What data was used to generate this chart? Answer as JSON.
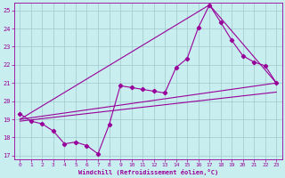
{
  "xlabel": "Windchill (Refroidissement éolien,°C)",
  "background_color": "#c8eef0",
  "grid_color": "#b0d8dc",
  "line_color": "#990099",
  "xlim": [
    -0.5,
    23.5
  ],
  "ylim": [
    16.8,
    25.4
  ],
  "yticks": [
    17,
    18,
    19,
    20,
    21,
    22,
    23,
    24,
    25
  ],
  "xticks": [
    0,
    1,
    2,
    3,
    4,
    5,
    6,
    7,
    8,
    9,
    10,
    11,
    12,
    13,
    14,
    15,
    16,
    17,
    18,
    19,
    20,
    21,
    22,
    23
  ],
  "data_x": [
    0,
    1,
    2,
    3,
    4,
    5,
    6,
    7,
    8,
    9,
    10,
    11,
    12,
    13,
    14,
    15,
    16,
    17,
    18,
    19,
    20,
    21,
    22,
    23
  ],
  "data_y": [
    19.3,
    18.9,
    18.75,
    18.35,
    17.65,
    17.75,
    17.55,
    17.1,
    18.7,
    20.85,
    20.75,
    20.65,
    20.55,
    20.45,
    21.85,
    22.35,
    24.05,
    25.3,
    24.35,
    23.35,
    22.5,
    22.15,
    21.95,
    21.0
  ],
  "line1_x": [
    0,
    23
  ],
  "line1_y": [
    19.0,
    21.0
  ],
  "line2_x": [
    0,
    17
  ],
  "line2_y": [
    19.0,
    25.3
  ],
  "line3_x": [
    17,
    23
  ],
  "line3_y": [
    25.3,
    21.0
  ],
  "line4_x": [
    0,
    23
  ],
  "line4_y": [
    18.9,
    20.5
  ]
}
